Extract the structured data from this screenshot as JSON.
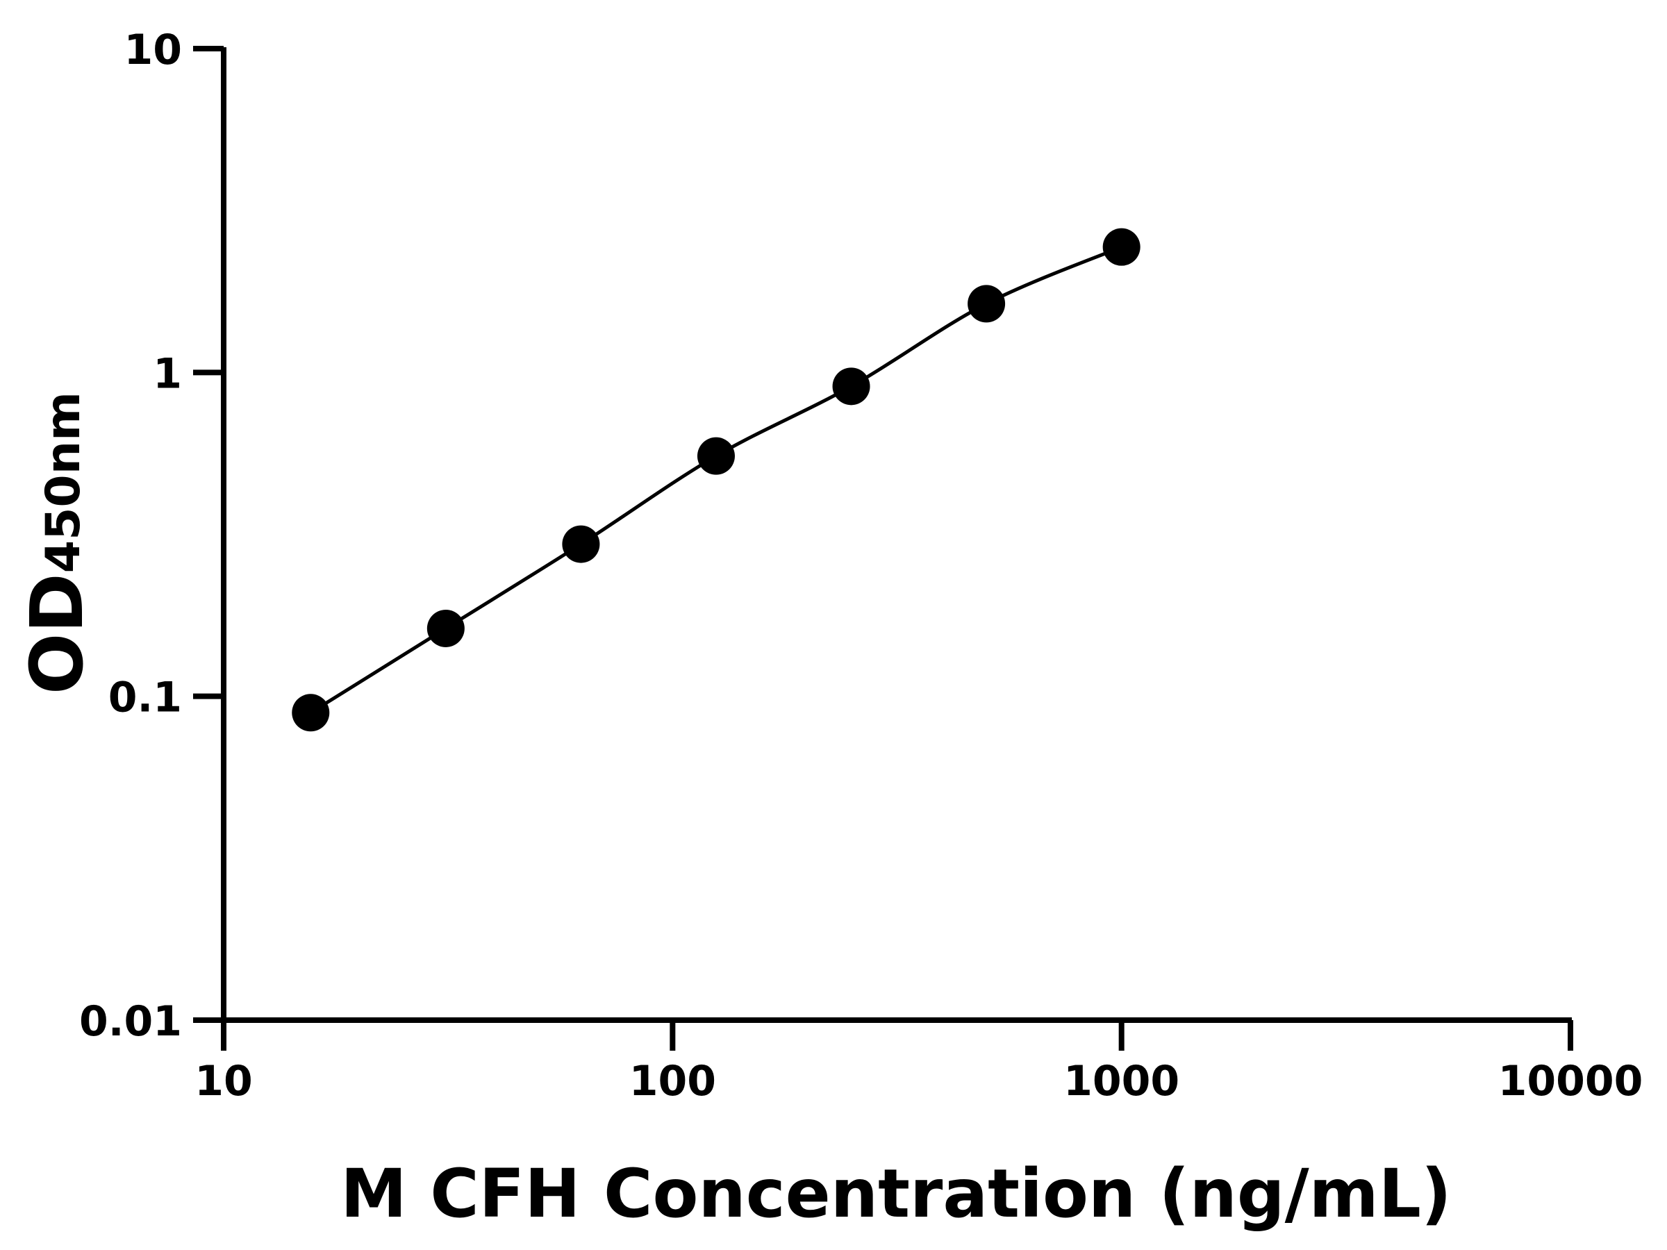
{
  "chart_data": {
    "type": "scatter",
    "title": "",
    "xlabel": "M CFH Concentration (ng/mL)",
    "ylabel": "OD",
    "ylabel_subscript": "450nm",
    "xscale": "log",
    "yscale": "log",
    "xlim": [
      10,
      10000
    ],
    "ylim": [
      0.01,
      10
    ],
    "xticks": [
      "10",
      "100",
      "1000",
      "10000"
    ],
    "yticks": [
      "0.01",
      "0.1",
      "1",
      "10"
    ],
    "grid": false,
    "fit_curve": true,
    "colors": {
      "points": "#000000",
      "line": "#000000"
    },
    "series": [
      {
        "x": [
          15.625,
          31.25,
          62.5,
          125,
          250,
          500,
          1000
        ],
        "y": [
          0.089,
          0.162,
          0.295,
          0.552,
          0.906,
          1.63,
          2.44
        ]
      }
    ]
  }
}
